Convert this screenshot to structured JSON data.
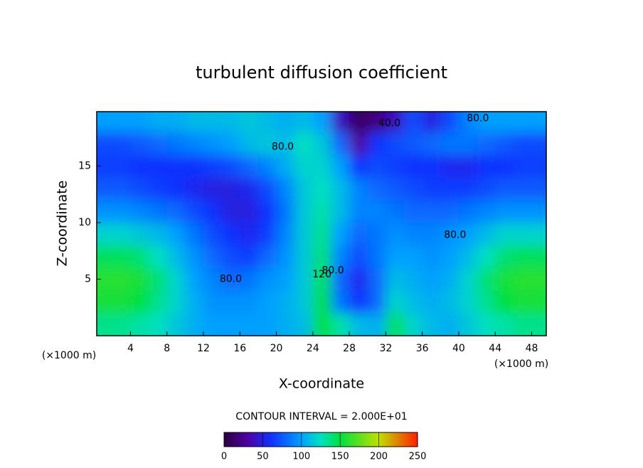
{
  "chart_data": {
    "type": "contour",
    "title": "turbulent diffusion coefficient",
    "x_label": "X-coordinate",
    "y_label": "Z-coordinate",
    "x_unit_left": "(×1000 m)",
    "x_unit_right": "(×1000 m)",
    "interval_note": "CONTOUR INTERVAL = 2.000E+01",
    "xlim": [
      0.3,
      49.6
    ],
    "xticks": [
      4,
      8,
      12,
      16,
      20,
      24,
      28,
      32,
      36,
      40,
      44,
      48
    ],
    "ylim": [
      0,
      19.8
    ],
    "yticks": [
      5,
      10,
      15
    ],
    "x": [
      1,
      3,
      5,
      7,
      9,
      11,
      13,
      15,
      17,
      19,
      21,
      23,
      25,
      27,
      29,
      31,
      33,
      35,
      37,
      39,
      41,
      43,
      45,
      47,
      49
    ],
    "y": [
      1,
      3,
      5,
      7,
      9,
      11,
      13,
      15,
      17,
      19
    ],
    "z": [
      [
        135,
        135,
        130,
        125,
        115,
        105,
        100,
        100,
        100,
        100,
        105,
        110,
        150,
        130,
        110,
        105,
        145,
        120,
        110,
        105,
        115,
        125,
        130,
        135,
        135
      ],
      [
        155,
        155,
        150,
        135,
        120,
        105,
        95,
        95,
        95,
        100,
        105,
        115,
        150,
        85,
        60,
        80,
        120,
        110,
        105,
        110,
        120,
        135,
        150,
        155,
        155
      ],
      [
        160,
        160,
        155,
        140,
        120,
        100,
        90,
        80,
        85,
        95,
        100,
        115,
        145,
        80,
        55,
        80,
        110,
        105,
        100,
        105,
        120,
        140,
        155,
        160,
        160
      ],
      [
        145,
        145,
        140,
        125,
        110,
        95,
        80,
        70,
        65,
        80,
        95,
        115,
        140,
        90,
        70,
        85,
        100,
        100,
        95,
        100,
        110,
        125,
        140,
        145,
        145
      ],
      [
        120,
        120,
        115,
        110,
        100,
        85,
        70,
        60,
        55,
        65,
        90,
        115,
        135,
        100,
        80,
        85,
        95,
        90,
        90,
        95,
        100,
        110,
        120,
        120,
        120
      ],
      [
        95,
        95,
        90,
        85,
        80,
        70,
        60,
        50,
        50,
        60,
        85,
        115,
        130,
        110,
        90,
        90,
        85,
        80,
        80,
        80,
        85,
        90,
        95,
        95,
        95
      ],
      [
        75,
        75,
        70,
        65,
        60,
        55,
        50,
        50,
        55,
        70,
        90,
        115,
        125,
        110,
        90,
        80,
        75,
        70,
        65,
        65,
        65,
        70,
        75,
        75,
        75
      ],
      [
        65,
        65,
        60,
        60,
        60,
        60,
        65,
        70,
        80,
        90,
        105,
        120,
        120,
        100,
        60,
        70,
        65,
        60,
        60,
        55,
        55,
        60,
        60,
        65,
        65
      ],
      [
        70,
        70,
        75,
        80,
        85,
        90,
        95,
        100,
        110,
        115,
        110,
        125,
        115,
        80,
        30,
        60,
        70,
        75,
        80,
        85,
        85,
        80,
        75,
        70,
        70
      ],
      [
        100,
        100,
        100,
        105,
        105,
        110,
        110,
        110,
        115,
        110,
        105,
        110,
        100,
        40,
        10,
        20,
        40,
        70,
        50,
        70,
        90,
        100,
        100,
        100,
        100
      ]
    ],
    "annotations": [
      {
        "text": "80.0",
        "x": 20.7,
        "y": 16.7
      },
      {
        "text": "40.0",
        "x": 32.4,
        "y": 18.75
      },
      {
        "text": "80.0",
        "x": 42.1,
        "y": 19.2
      },
      {
        "text": "80.0",
        "x": 39.6,
        "y": 8.9
      },
      {
        "text": "80.0",
        "x": 15.0,
        "y": 5.0
      },
      {
        "text": "120",
        "x": 25.0,
        "y": 5.4
      },
      {
        "text": "80.0",
        "x": 26.2,
        "y": 5.75
      }
    ],
    "clim": [
      0,
      250
    ],
    "colorbar_ticks": [
      0,
      50,
      100,
      150,
      200,
      250
    ],
    "colormap": [
      [
        0,
        "#2a0040"
      ],
      [
        30,
        "#5000a0"
      ],
      [
        60,
        "#1030ff"
      ],
      [
        100,
        "#00a0ff"
      ],
      [
        125,
        "#00e0c0"
      ],
      [
        150,
        "#00e040"
      ],
      [
        200,
        "#c0e000"
      ],
      [
        250,
        "#ff2000"
      ]
    ]
  }
}
